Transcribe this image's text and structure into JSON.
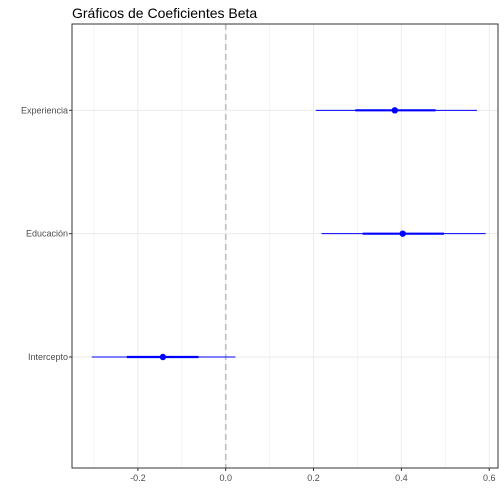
{
  "chart_data": {
    "type": "coefficient-plot",
    "title": "Gráficos de Coeficientes Beta",
    "xlabel": "",
    "ylabel": "",
    "xlim": [
      -0.35,
      0.62
    ],
    "x_ticks": [
      -0.2,
      0.0,
      0.2,
      0.4,
      0.6
    ],
    "x_tick_labels": [
      "-0.2",
      "0.0",
      "0.2",
      "0.4",
      "0.6"
    ],
    "grid": true,
    "reference_line": {
      "x": 0.0,
      "style": "dashed",
      "color": "#bebebe"
    },
    "colors": {
      "estimate": "#0000ff",
      "grid": "#ebebeb",
      "frame": "#333333"
    },
    "coefficients": [
      {
        "name": "Experiencia",
        "estimate": 0.385,
        "inner": [
          0.295,
          0.478
        ],
        "outer": [
          0.205,
          0.572
        ]
      },
      {
        "name": "Educación",
        "estimate": 0.403,
        "inner": [
          0.312,
          0.497
        ],
        "outer": [
          0.218,
          0.592
        ]
      },
      {
        "name": "Intercepto",
        "estimate": -0.143,
        "inner": [
          -0.225,
          -0.062
        ],
        "outer": [
          -0.305,
          0.022
        ]
      }
    ]
  }
}
